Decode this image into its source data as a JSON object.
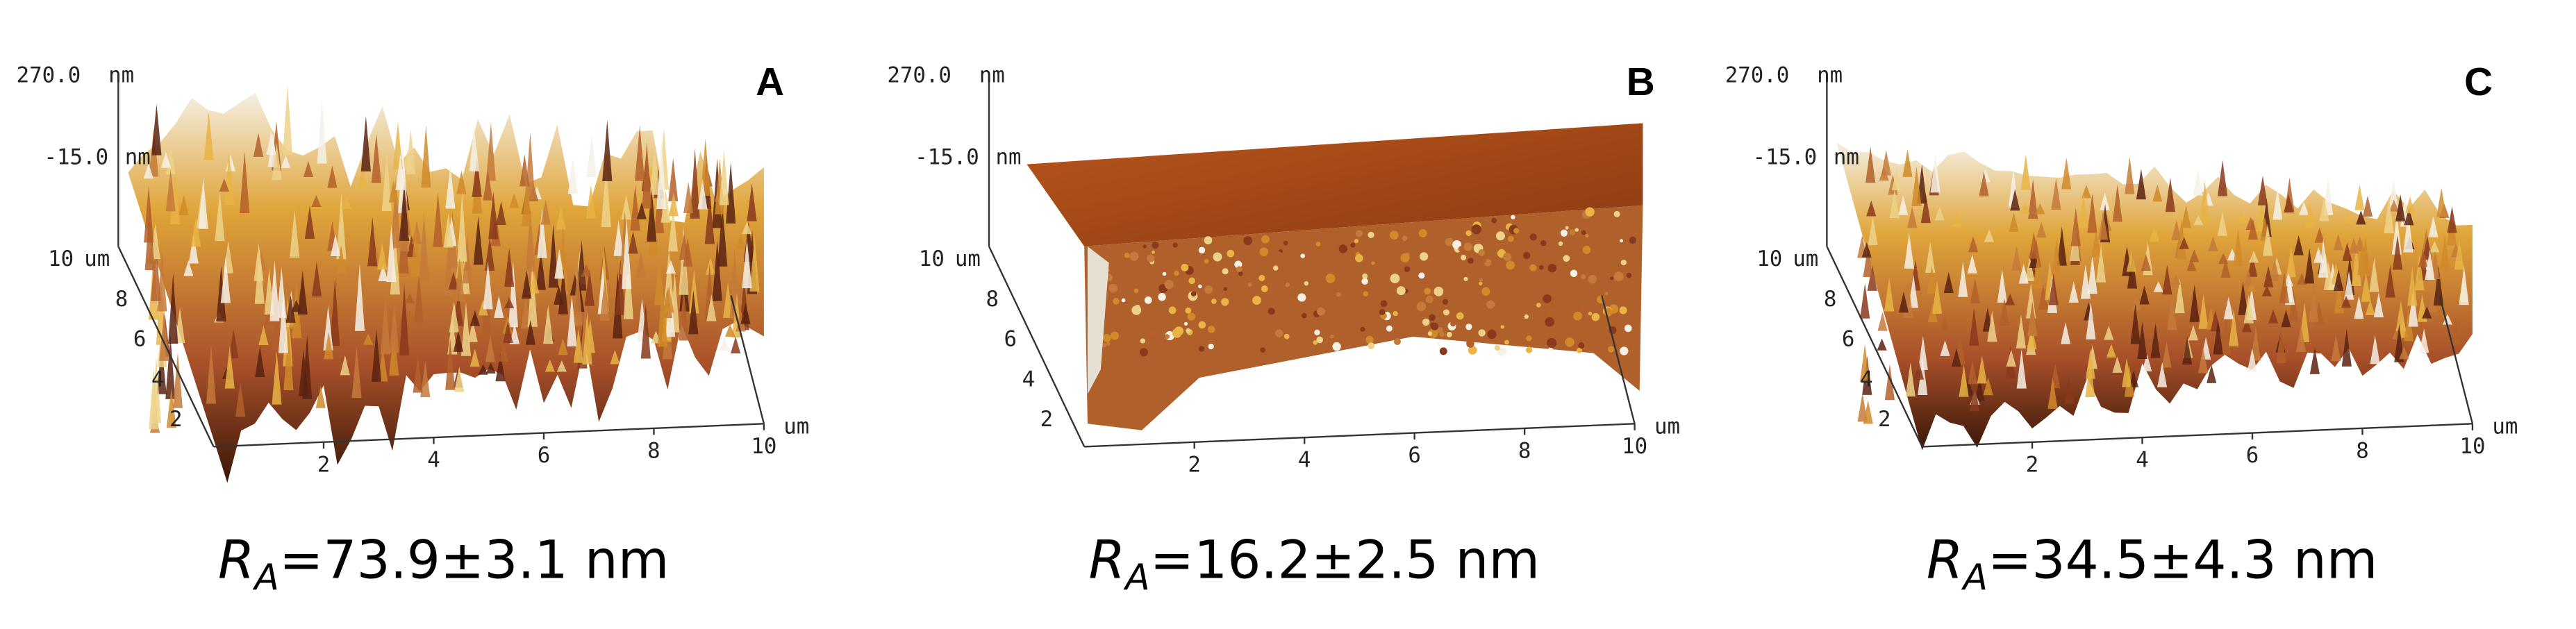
{
  "panels": [
    {
      "label": "A",
      "z_labels": [
        "270.0",
        "-15.0"
      ],
      "z_unit": "nm",
      "ticks": [
        "2",
        "4",
        "6",
        "8",
        "10"
      ],
      "unit": "um",
      "caption": {
        "symbol": "R",
        "subscript": "A",
        "text": "=73.9±3.1 nm"
      }
    },
    {
      "label": "B",
      "z_labels": [
        "270.0",
        "-15.0"
      ],
      "z_unit": "nm",
      "ticks": [
        "2",
        "4",
        "6",
        "8",
        "10"
      ],
      "unit": "um",
      "caption": {
        "symbol": "R",
        "subscript": "A",
        "text": "=16.2±2.5 nm"
      }
    },
    {
      "label": "C",
      "z_labels": [
        "270.0",
        "-15.0"
      ],
      "z_unit": "nm",
      "ticks": [
        "2",
        "4",
        "6",
        "8",
        "10"
      ],
      "unit": "um",
      "caption": {
        "symbol": "R",
        "subscript": "A",
        "text": "=34.5±4.3 nm"
      }
    }
  ]
}
